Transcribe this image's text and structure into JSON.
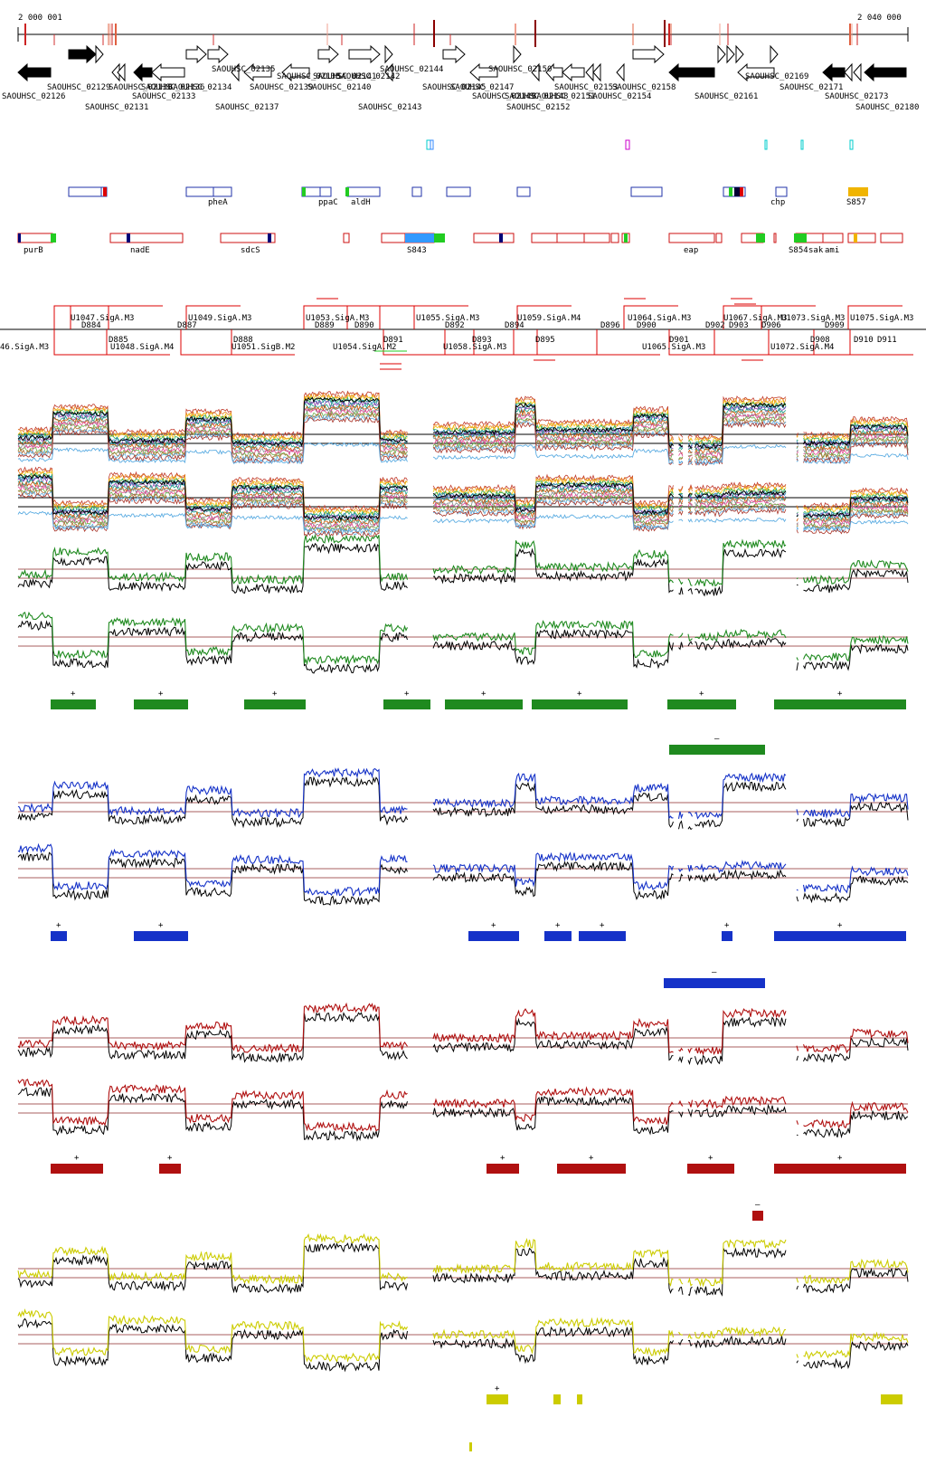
{
  "coords": {
    "start": "2 000 001",
    "end": "2 040 000"
  },
  "colors": {
    "green": "#1f8a1f",
    "blue": "#1532c8",
    "red": "#b01010",
    "yellow": "#cccc00",
    "refline": "#8b2a2a",
    "cyan": "#00cccc",
    "orange": "#f0b400",
    "geneBorderBlue": "#2233aa",
    "geneBorderRed": "#cc1111",
    "black": "#000000"
  },
  "genes": {
    "top_labels": [
      {
        "text": "SAOUHSC_02129"
      },
      {
        "text": "SAOUHSC_02135"
      },
      {
        "text": "SAOUHSC_02138"
      },
      {
        "text": "SAOUHSC_02141"
      },
      {
        "text": "SAOUHSC_02144"
      },
      {
        "text": "SAOUHSC_02150"
      },
      {
        "text": "SAOUHSC_02169"
      }
    ],
    "row1_labels": [
      {
        "text": "SAOUHSC_02126"
      },
      {
        "text": "SAOUHSC_02130"
      },
      {
        "text": "SAOUHSC_02134"
      },
      {
        "text": "SAOUHSC_02139"
      },
      {
        "text": "SAOUHSC_02140"
      },
      {
        "text": "SAOUHSC_02142"
      },
      {
        "text": "SAOUHSC_02145"
      },
      {
        "text": "SAOUHSC_02147"
      },
      {
        "text": "SAOUHSC_02148"
      },
      {
        "text": "SAOUHSC_02151"
      },
      {
        "text": "SAOUHSC_02153"
      },
      {
        "text": "SAOUHSC_02154"
      },
      {
        "text": "SAOUHSC_02158"
      },
      {
        "text": "SAOUHSC_02161"
      },
      {
        "text": "SAOUHSC_02171"
      },
      {
        "text": "SAOUHSC_02173"
      }
    ],
    "row2_labels": [
      {
        "text": "SAOUHSC_02133"
      },
      {
        "text": "SAOUHSC_02136"
      }
    ],
    "row3_labels": [
      {
        "text": "SAOUHSC_02131"
      },
      {
        "text": "SAOUHSC_02137"
      },
      {
        "text": "SAOUHSC_02143"
      },
      {
        "text": "SAOUHSC_02149"
      },
      {
        "text": "SAOUHSC_02152"
      },
      {
        "text": "SAOUHSC_02180"
      }
    ]
  },
  "annotations": {
    "blue_row": [
      {
        "text": "pheA"
      },
      {
        "text": "ppaC"
      },
      {
        "text": "aldH"
      },
      {
        "text": "chp"
      },
      {
        "text": "S857"
      }
    ],
    "red_row": [
      {
        "text": "purB"
      },
      {
        "text": "nadE"
      },
      {
        "text": "sdcS"
      },
      {
        "text": "S843"
      },
      {
        "text": "eap"
      },
      {
        "text": "S854"
      },
      {
        "text": "sak"
      },
      {
        "text": "ami"
      }
    ]
  },
  "transcripts": {
    "upper": [
      {
        "text": "U1047.SigA.M3"
      },
      {
        "text": "U1049.SigA.M3"
      },
      {
        "text": "U1053.SigA.M3"
      },
      {
        "text": "U1055.SigA.M3"
      },
      {
        "text": "U1059.SigA.M4"
      },
      {
        "text": "U1064.SigA.M3"
      },
      {
        "text": "U1067.SigA.M3"
      },
      {
        "text": "U1073.SigA.M3"
      },
      {
        "text": "U1075.SigA.M3"
      }
    ],
    "downs": [
      {
        "text": "D884"
      },
      {
        "text": "D885"
      },
      {
        "text": "D887"
      },
      {
        "text": "D888"
      },
      {
        "text": "D889"
      },
      {
        "text": "D890"
      },
      {
        "text": "D891"
      },
      {
        "text": "D892"
      },
      {
        "text": "D893"
      },
      {
        "text": "D894"
      },
      {
        "text": "D895"
      },
      {
        "text": "D896"
      },
      {
        "text": "D900"
      },
      {
        "text": "D901"
      },
      {
        "text": "D902"
      },
      {
        "text": "D903"
      },
      {
        "text": "D906"
      },
      {
        "text": "D908"
      },
      {
        "text": "D909"
      },
      {
        "text": "D910"
      },
      {
        "text": "D911"
      }
    ],
    "lower": [
      {
        "text": "46.SigA.M3"
      },
      {
        "text": "U1048.SigA.M4"
      },
      {
        "text": "U1051.SigB.M2"
      },
      {
        "text": "U1054.SigA.M2"
      },
      {
        "text": "U1058.SigA.M3"
      },
      {
        "text": "U1065.SigA.M3"
      },
      {
        "text": "U1072.SigA.M4"
      }
    ]
  },
  "segments": {
    "plus": "+",
    "minus": "–"
  }
}
